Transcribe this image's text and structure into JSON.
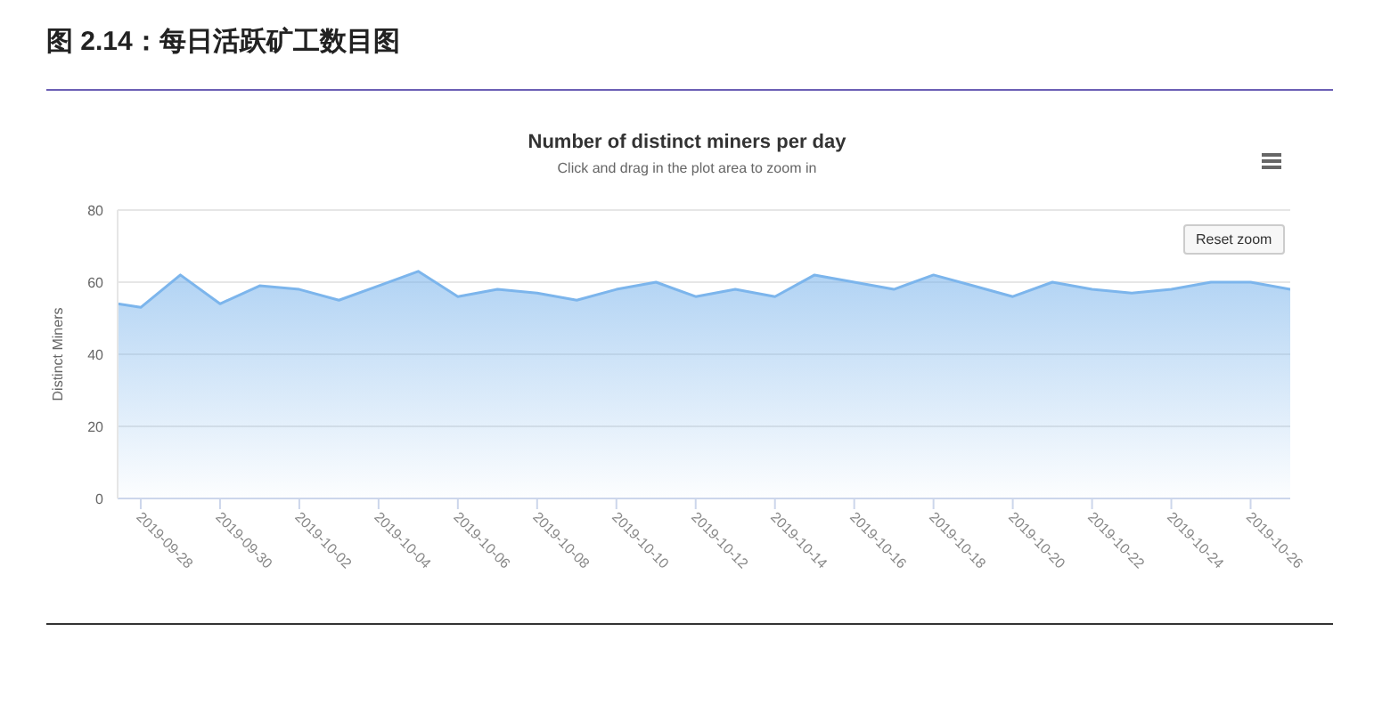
{
  "chart_data": {
    "type": "area",
    "title": "Number of distinct miners per day",
    "subtitle": "Click and drag in the plot area to zoom in",
    "ylabel": "Distinct Miners",
    "annotations": [
      "图 2.14：每日活跃矿工数目图",
      "Reset zoom"
    ],
    "x": [
      "2019-09-27T10:00",
      "2019-09-28",
      "2019-09-29",
      "2019-09-30",
      "2019-10-01",
      "2019-10-02",
      "2019-10-03",
      "2019-10-04",
      "2019-10-05",
      "2019-10-06",
      "2019-10-07",
      "2019-10-08",
      "2019-10-09",
      "2019-10-10",
      "2019-10-11",
      "2019-10-12",
      "2019-10-13",
      "2019-10-14",
      "2019-10-15",
      "2019-10-16",
      "2019-10-17",
      "2019-10-18",
      "2019-10-19",
      "2019-10-20",
      "2019-10-21",
      "2019-10-22",
      "2019-10-23",
      "2019-10-24",
      "2019-10-25",
      "2019-10-26",
      "2019-10-27"
    ],
    "series": [
      {
        "color": "#7cb5ec",
        "values": [
          54,
          53,
          62,
          54,
          59,
          58,
          55,
          59,
          63,
          56,
          58,
          57,
          55,
          58,
          60,
          56,
          58,
          56,
          62,
          60,
          58,
          62,
          59,
          56,
          60,
          58,
          57,
          58,
          60,
          60,
          58
        ]
      }
    ],
    "xlim": [
      "2019-09-27T10:00",
      "2019-10-27"
    ],
    "xticks": [
      "2019-09-28",
      "2019-09-30",
      "2019-10-02",
      "2019-10-04",
      "2019-10-06",
      "2019-10-08",
      "2019-10-10",
      "2019-10-12",
      "2019-10-14",
      "2019-10-16",
      "2019-10-18",
      "2019-10-20",
      "2019-10-22",
      "2019-10-24",
      "2019-10-26"
    ],
    "ylim": [
      0,
      80
    ],
    "yticks": [
      0,
      20,
      40,
      60,
      80
    ],
    "grid": "y",
    "legend": false
  }
}
